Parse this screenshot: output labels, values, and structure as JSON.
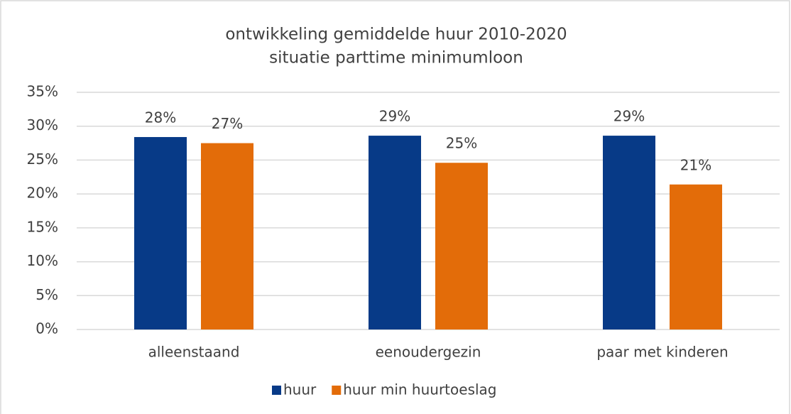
{
  "chart_data": {
    "type": "bar",
    "title": [
      "ontwikkeling gemiddelde huur 2010-2020",
      "situatie parttime minimumloon"
    ],
    "categories": [
      "alleenstaand",
      "eenoudergezin",
      "paar met kinderen"
    ],
    "series": [
      {
        "name": "huur",
        "color": "#073a87",
        "values": [
          28.4,
          28.6,
          28.6
        ],
        "value_labels": [
          "28%",
          "29%",
          "29%"
        ]
      },
      {
        "name": "huur min huurtoeslag",
        "color": "#e36c09",
        "values": [
          27.5,
          24.6,
          21.4
        ],
        "value_labels": [
          "27%",
          "25%",
          "21%"
        ]
      }
    ],
    "ylim": [
      0,
      35
    ],
    "yticks": [
      {
        "value": 0,
        "label": "0%"
      },
      {
        "value": 5,
        "label": "5%"
      },
      {
        "value": 10,
        "label": "10%"
      },
      {
        "value": 15,
        "label": "15%"
      },
      {
        "value": 20,
        "label": "20%"
      },
      {
        "value": 25,
        "label": "25%"
      },
      {
        "value": 30,
        "label": "30%"
      },
      {
        "value": 35,
        "label": "35%"
      }
    ],
    "grid": true,
    "legend": "bottom"
  }
}
